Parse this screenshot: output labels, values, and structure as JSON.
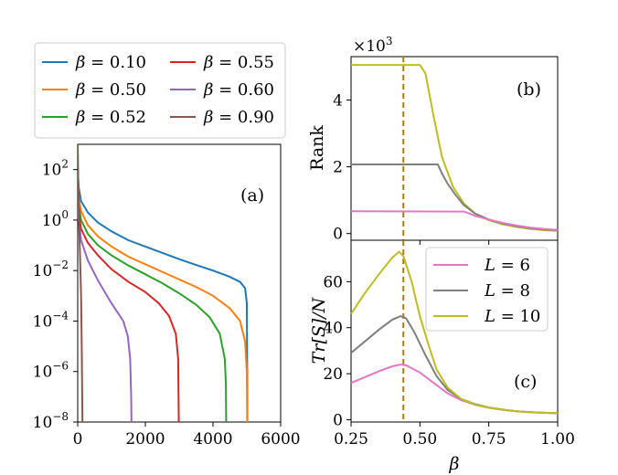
{
  "chart_data": [
    {
      "id": "a",
      "type": "line",
      "panel_label": "(a)",
      "xlabel": "",
      "ylabel": "",
      "xlim": [
        0,
        6000
      ],
      "ylim_log10": [
        -8,
        3
      ],
      "yscale": "log",
      "x_ticks": [
        "0",
        "2000",
        "4000",
        "6000"
      ],
      "y_ticks": [
        {
          "base": "10",
          "exp": "2",
          "log": 2
        },
        {
          "base": "10",
          "exp": "0",
          "log": 0
        },
        {
          "base": "10",
          "exp": "−2",
          "log": -2
        },
        {
          "base": "10",
          "exp": "−4",
          "log": -4
        },
        {
          "base": "10",
          "exp": "−6",
          "log": -6
        },
        {
          "base": "10",
          "exp": "−8",
          "log": -8
        }
      ],
      "legend": {
        "placement": "above-left",
        "entries": [
          {
            "symbol": "β",
            "text": " = 0.10",
            "color": "#1f77b4"
          },
          {
            "symbol": "β",
            "text": " = 0.55",
            "color": "#d62728"
          },
          {
            "symbol": "β",
            "text": " = 0.50",
            "color": "#ff7f0e"
          },
          {
            "symbol": "β",
            "text": " = 0.60",
            "color": "#9467bd"
          },
          {
            "symbol": "β",
            "text": " = 0.52",
            "color": "#2ca02c"
          },
          {
            "symbol": "β",
            "text": " = 0.90",
            "color": "#8c564b"
          }
        ]
      },
      "series": [
        {
          "color": "#1f77b4",
          "points": [
            [
              0,
              2
            ],
            [
              30,
              1.3
            ],
            [
              100,
              0.75
            ],
            [
              300,
              0.3
            ],
            [
              600,
              -0.1
            ],
            [
              1000,
              -0.45
            ],
            [
              1500,
              -0.8
            ],
            [
              2000,
              -1.05
            ],
            [
              2500,
              -1.3
            ],
            [
              3000,
              -1.55
            ],
            [
              3500,
              -1.78
            ],
            [
              4000,
              -2.0
            ],
            [
              4500,
              -2.25
            ],
            [
              4800,
              -2.45
            ],
            [
              4950,
              -2.7
            ],
            [
              5000,
              -3.3
            ],
            [
              5010,
              -6.0
            ],
            [
              5015,
              -8
            ]
          ]
        },
        {
          "color": "#ff7f0e",
          "points": [
            [
              0,
              2
            ],
            [
              30,
              0.9
            ],
            [
              100,
              0.35
            ],
            [
              300,
              -0.2
            ],
            [
              600,
              -0.65
            ],
            [
              1000,
              -1.05
            ],
            [
              1500,
              -1.45
            ],
            [
              2000,
              -1.75
            ],
            [
              2500,
              -2.05
            ],
            [
              3000,
              -2.35
            ],
            [
              3500,
              -2.65
            ],
            [
              4000,
              -3.0
            ],
            [
              4500,
              -3.5
            ],
            [
              4800,
              -4.0
            ],
            [
              4950,
              -4.8
            ],
            [
              5000,
              -6.0
            ],
            [
              5010,
              -8
            ]
          ]
        },
        {
          "color": "#2ca02c",
          "points": [
            [
              0,
              2
            ],
            [
              30,
              0.6
            ],
            [
              100,
              0.0
            ],
            [
              300,
              -0.55
            ],
            [
              600,
              -1.0
            ],
            [
              1000,
              -1.4
            ],
            [
              1500,
              -1.8
            ],
            [
              2000,
              -2.15
            ],
            [
              2500,
              -2.5
            ],
            [
              3000,
              -2.9
            ],
            [
              3500,
              -3.35
            ],
            [
              3900,
              -3.85
            ],
            [
              4200,
              -4.5
            ],
            [
              4350,
              -5.5
            ],
            [
              4380,
              -6.5
            ],
            [
              4390,
              -8
            ]
          ]
        },
        {
          "color": "#d62728",
          "points": [
            [
              0,
              2
            ],
            [
              30,
              0.3
            ],
            [
              100,
              -0.35
            ],
            [
              300,
              -0.9
            ],
            [
              600,
              -1.4
            ],
            [
              1000,
              -1.95
            ],
            [
              1500,
              -2.45
            ],
            [
              2000,
              -2.85
            ],
            [
              2400,
              -3.3
            ],
            [
              2700,
              -3.8
            ],
            [
              2900,
              -4.5
            ],
            [
              2970,
              -5.5
            ],
            [
              2990,
              -8
            ]
          ]
        },
        {
          "color": "#9467bd",
          "points": [
            [
              0,
              2
            ],
            [
              30,
              0.0
            ],
            [
              100,
              -0.8
            ],
            [
              300,
              -1.6
            ],
            [
              600,
              -2.4
            ],
            [
              1000,
              -3.3
            ],
            [
              1200,
              -3.7
            ],
            [
              1350,
              -4.0
            ],
            [
              1480,
              -4.6
            ],
            [
              1550,
              -5.5
            ],
            [
              1580,
              -7
            ],
            [
              1590,
              -8
            ]
          ]
        },
        {
          "color": "#8c564b",
          "points": [
            [
              0,
              3
            ],
            [
              15,
              1.5
            ],
            [
              40,
              0
            ],
            [
              70,
              -1.5
            ],
            [
              100,
              -3
            ],
            [
              120,
              -5
            ],
            [
              130,
              -6.5
            ],
            [
              140,
              -8
            ]
          ]
        }
      ]
    },
    {
      "id": "b",
      "type": "line",
      "panel_label": "(b)",
      "ylabel": "Rank",
      "scale_label": {
        "base": "×10",
        "exp": "3"
      },
      "xlim": [
        0.25,
        1.0
      ],
      "ylim": [
        -0.2,
        5.3
      ],
      "y_ticks": [
        "0",
        "2",
        "4"
      ],
      "vline": {
        "x": 0.44,
        "color": "#a47e10"
      },
      "series": [
        {
          "color": "#bcbd22",
          "points": [
            [
              0.25,
              5.05
            ],
            [
              0.5,
              5.05
            ],
            [
              0.52,
              4.8
            ],
            [
              0.55,
              3.5
            ],
            [
              0.58,
              2.3
            ],
            [
              0.62,
              1.4
            ],
            [
              0.66,
              0.9
            ],
            [
              0.7,
              0.6
            ],
            [
              0.75,
              0.4
            ],
            [
              0.8,
              0.28
            ],
            [
              0.85,
              0.2
            ],
            [
              0.9,
              0.14
            ],
            [
              0.95,
              0.1
            ],
            [
              1.0,
              0.08
            ]
          ]
        },
        {
          "color": "#7f7f7f",
          "points": [
            [
              0.25,
              2.07
            ],
            [
              0.565,
              2.07
            ],
            [
              0.58,
              1.8
            ],
            [
              0.6,
              1.5
            ],
            [
              0.63,
              1.15
            ],
            [
              0.66,
              0.85
            ],
            [
              0.7,
              0.6
            ],
            [
              0.75,
              0.42
            ],
            [
              0.8,
              0.3
            ],
            [
              0.85,
              0.22
            ],
            [
              0.9,
              0.16
            ],
            [
              0.95,
              0.12
            ],
            [
              1.0,
              0.1
            ]
          ]
        },
        {
          "color": "#e377c2",
          "points": [
            [
              0.25,
              0.67
            ],
            [
              0.66,
              0.66
            ],
            [
              0.68,
              0.6
            ],
            [
              0.7,
              0.53
            ],
            [
              0.75,
              0.42
            ],
            [
              0.8,
              0.32
            ],
            [
              0.85,
              0.24
            ],
            [
              0.9,
              0.18
            ],
            [
              0.95,
              0.14
            ],
            [
              1.0,
              0.11
            ]
          ]
        }
      ]
    },
    {
      "id": "c",
      "type": "line",
      "panel_label": "(c)",
      "ylabel": "Tr[S]/N",
      "xlabel": "β",
      "xlim": [
        0.25,
        1.0
      ],
      "ylim": [
        -1,
        78
      ],
      "x_ticks": [
        "0.25",
        "0.50",
        "0.75",
        "1.00"
      ],
      "y_ticks": [
        "0",
        "20",
        "40",
        "60"
      ],
      "vline": {
        "x": 0.44,
        "color": "#a47e10"
      },
      "legend": {
        "placement": "top-right",
        "entries": [
          {
            "symbol": "L",
            "text": " = 6",
            "color": "#e377c2"
          },
          {
            "symbol": "L",
            "text": " = 8",
            "color": "#7f7f7f"
          },
          {
            "symbol": "L",
            "text": " = 10",
            "color": "#bcbd22"
          }
        ]
      },
      "series": [
        {
          "color": "#e377c2",
          "points": [
            [
              0.25,
              16
            ],
            [
              0.3,
              18.5
            ],
            [
              0.35,
              21
            ],
            [
              0.4,
              23.2
            ],
            [
              0.43,
              24
            ],
            [
              0.45,
              23.6
            ],
            [
              0.5,
              20.5
            ],
            [
              0.55,
              16
            ],
            [
              0.6,
              11.5
            ],
            [
              0.65,
              8.5
            ],
            [
              0.7,
              6.5
            ],
            [
              0.75,
              5.2
            ],
            [
              0.8,
              4.3
            ],
            [
              0.85,
              3.7
            ],
            [
              0.9,
              3.3
            ],
            [
              0.95,
              3.0
            ],
            [
              1.0,
              2.8
            ]
          ]
        },
        {
          "color": "#7f7f7f",
          "points": [
            [
              0.25,
              29
            ],
            [
              0.3,
              34
            ],
            [
              0.35,
              39
            ],
            [
              0.4,
              43.5
            ],
            [
              0.43,
              45
            ],
            [
              0.45,
              44
            ],
            [
              0.48,
              38
            ],
            [
              0.52,
              28
            ],
            [
              0.56,
              19
            ],
            [
              0.6,
              13
            ],
            [
              0.65,
              9
            ],
            [
              0.7,
              6.8
            ],
            [
              0.75,
              5.3
            ],
            [
              0.8,
              4.4
            ],
            [
              0.85,
              3.7
            ],
            [
              0.9,
              3.3
            ],
            [
              0.95,
              3.0
            ],
            [
              1.0,
              2.8
            ]
          ]
        },
        {
          "color": "#bcbd22",
          "points": [
            [
              0.25,
              46
            ],
            [
              0.3,
              55
            ],
            [
              0.35,
              63
            ],
            [
              0.4,
              70.5
            ],
            [
              0.425,
              73
            ],
            [
              0.44,
              71
            ],
            [
              0.47,
              60
            ],
            [
              0.5,
              45
            ],
            [
              0.53,
              33
            ],
            [
              0.56,
              22
            ],
            [
              0.6,
              14
            ],
            [
              0.65,
              9
            ],
            [
              0.7,
              6.5
            ],
            [
              0.75,
              5.2
            ],
            [
              0.8,
              4.3
            ],
            [
              0.85,
              3.7
            ],
            [
              0.9,
              3.3
            ],
            [
              0.95,
              3.0
            ],
            [
              1.0,
              2.8
            ]
          ]
        }
      ]
    }
  ]
}
